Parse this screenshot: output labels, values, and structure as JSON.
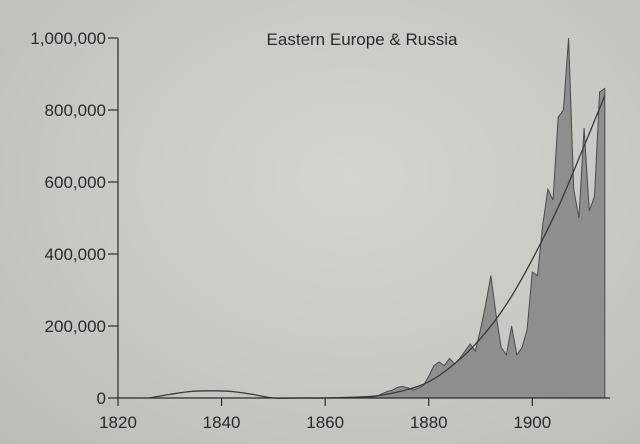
{
  "chart_data": {
    "type": "area",
    "title": "Eastern Europe & Russia",
    "xlabel": "",
    "ylabel": "",
    "xlim": [
      1820,
      1915
    ],
    "ylim": [
      0,
      1000000
    ],
    "grid": false,
    "x_ticks": [
      1820,
      1840,
      1860,
      1880,
      1900
    ],
    "x_tick_labels": [
      "1820",
      "1840",
      "1860",
      "1880",
      "1900"
    ],
    "y_ticks": [
      0,
      200000,
      400000,
      600000,
      800000,
      1000000
    ],
    "y_tick_labels": [
      "0",
      "200,000",
      "400,000",
      "600,000",
      "800,000",
      "1,000,000"
    ],
    "colors": {
      "area_fill": "#8e8e8c",
      "line": "#3a3a3a",
      "axis": "#2a2a2a"
    },
    "series": [
      {
        "type": "area",
        "x": [
          1820,
          1825,
          1830,
          1835,
          1840,
          1845,
          1850,
          1855,
          1860,
          1865,
          1868,
          1869,
          1870,
          1871,
          1872,
          1873,
          1874,
          1875,
          1876,
          1877,
          1878,
          1879,
          1880,
          1881,
          1882,
          1883,
          1884,
          1885,
          1886,
          1887,
          1888,
          1889,
          1890,
          1891,
          1892,
          1893,
          1894,
          1895,
          1896,
          1897,
          1898,
          1899,
          1900,
          1901,
          1902,
          1903,
          1904,
          1905,
          1906,
          1907,
          1908,
          1909,
          1910,
          1911,
          1912,
          1913,
          1914
        ],
        "y": [
          0,
          0,
          0,
          0,
          0,
          0,
          0,
          0,
          0,
          0,
          0,
          3000,
          5000,
          12000,
          18000,
          22000,
          30000,
          32000,
          28000,
          22000,
          28000,
          35000,
          60000,
          90000,
          100000,
          90000,
          110000,
          95000,
          110000,
          130000,
          150000,
          130000,
          190000,
          260000,
          340000,
          230000,
          140000,
          120000,
          200000,
          120000,
          140000,
          190000,
          350000,
          340000,
          480000,
          580000,
          550000,
          780000,
          800000,
          1000000,
          580000,
          500000,
          750000,
          520000,
          560000,
          850000,
          860000
        ]
      },
      {
        "type": "line",
        "x": [
          1826,
          1830,
          1834,
          1838,
          1842,
          1846,
          1850,
          1855,
          1860,
          1865,
          1870,
          1875,
          1880,
          1885,
          1890,
          1895,
          1900,
          1905,
          1910,
          1914
        ],
        "y": [
          0,
          10000,
          18000,
          20000,
          18000,
          10000,
          0,
          0,
          0,
          2000,
          6000,
          20000,
          45000,
          95000,
          165000,
          260000,
          385000,
          530000,
          700000,
          840000
        ]
      }
    ]
  }
}
